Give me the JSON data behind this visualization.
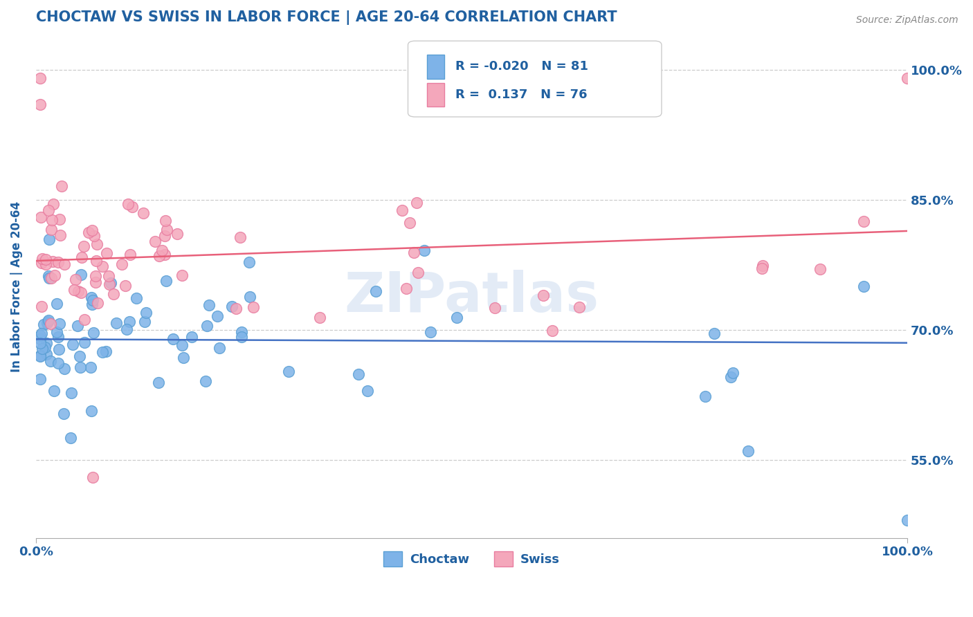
{
  "title": "CHOCTAW VS SWISS IN LABOR FORCE | AGE 20-64 CORRELATION CHART",
  "source_text": "Source: ZipAtlas.com",
  "ylabel": "In Labor Force | Age 20-64",
  "xlim": [
    0.0,
    1.0
  ],
  "ylim": [
    0.46,
    1.04
  ],
  "yticks": [
    0.55,
    0.7,
    0.85,
    1.0
  ],
  "ytick_labels": [
    "55.0%",
    "70.0%",
    "85.0%",
    "100.0%"
  ],
  "choctaw_color": "#7eb3e8",
  "swiss_color": "#f4a7bb",
  "choctaw_edge": "#5a9fd4",
  "swiss_edge": "#e87da0",
  "trend_choctaw_color": "#4472c4",
  "trend_swiss_color": "#e8607a",
  "R_choctaw": -0.02,
  "R_swiss": 0.137,
  "N_choctaw": 81,
  "N_swiss": 76,
  "watermark": "ZIPatlas",
  "background_color": "#ffffff",
  "grid_color": "#cccccc",
  "title_color": "#2060a0",
  "axis_color": "#2060a0",
  "legend_text_color": "#2060a0"
}
